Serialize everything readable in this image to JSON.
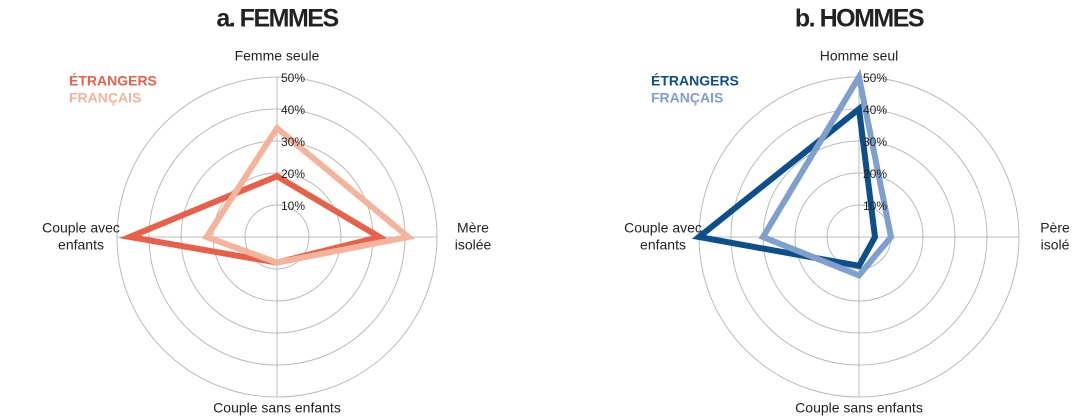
{
  "chart_data": [
    {
      "type": "radar",
      "title": "a. FEMMES",
      "categories": [
        [
          "Femme seule"
        ],
        [
          "Mère",
          "isolée"
        ],
        [
          "Couple sans enfants"
        ],
        [
          "Couple avec",
          "enfants"
        ]
      ],
      "series": [
        {
          "name": "ÉTRANGERS",
          "color": "#e8604a",
          "values": [
            19,
            32,
            8,
            46
          ]
        },
        {
          "name": "FRANÇAIS",
          "color": "#f5b39c",
          "values": [
            34,
            41,
            8,
            22
          ]
        }
      ],
      "ylim": [
        0,
        50
      ],
      "yticks": [
        {
          "value": 10,
          "label": "10%"
        },
        {
          "value": 20,
          "label": "20%"
        },
        {
          "value": 30,
          "label": "30%"
        },
        {
          "value": 40,
          "label": "40%"
        },
        {
          "value": 50,
          "label": "50%"
        }
      ]
    },
    {
      "type": "radar",
      "title": "b. HOMMES",
      "categories": [
        [
          "Homme seul"
        ],
        [
          "Père",
          "isolé"
        ],
        [
          "Couple sans enfants"
        ],
        [
          "Couple avec",
          "enfants"
        ]
      ],
      "series": [
        {
          "name": "ÉTRANGERS",
          "color": "#0d4f8b",
          "values": [
            40,
            5,
            9,
            50
          ]
        },
        {
          "name": "FRANÇAIS",
          "color": "#7f9fcc",
          "values": [
            50,
            10,
            12,
            30
          ]
        }
      ],
      "ylim": [
        0,
        50
      ],
      "yticks": [
        {
          "value": 10,
          "label": "10%"
        },
        {
          "value": 20,
          "label": "20%"
        },
        {
          "value": 30,
          "label": "30%"
        },
        {
          "value": 40,
          "label": "40%"
        },
        {
          "value": 50,
          "label": "50%"
        }
      ]
    }
  ]
}
